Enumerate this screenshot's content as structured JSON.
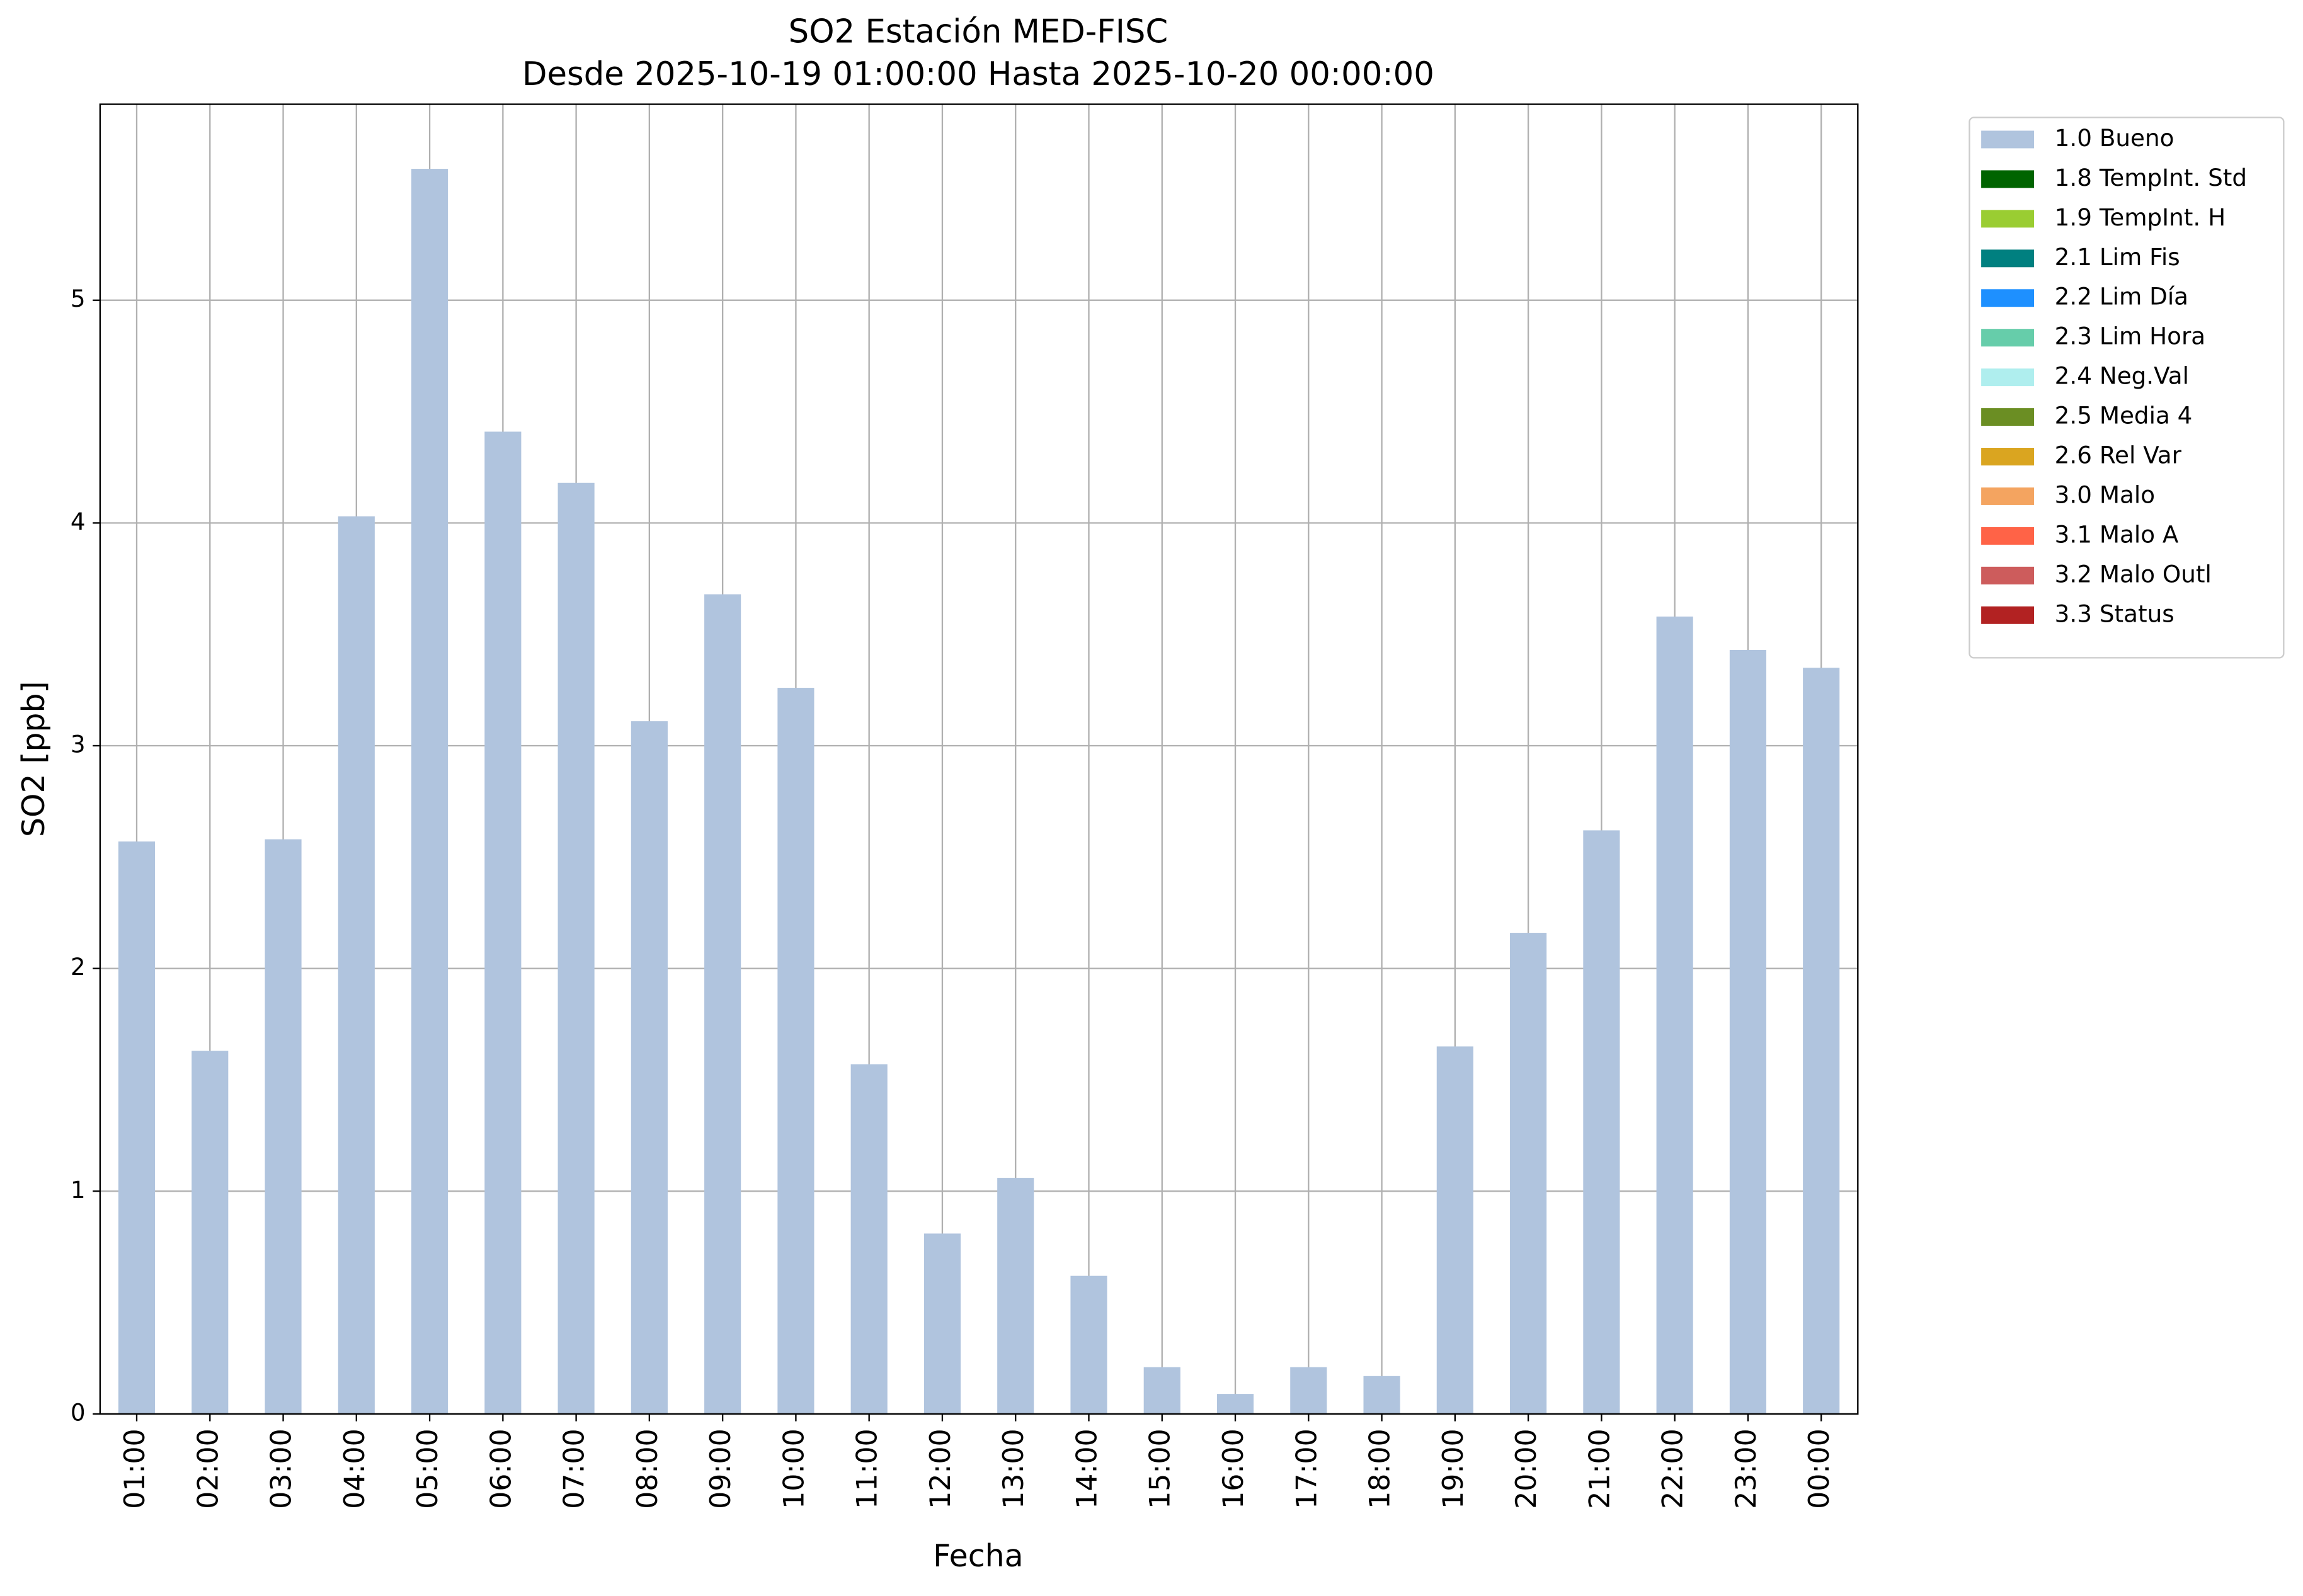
{
  "chart_data": {
    "type": "stacked_bar",
    "title": "SO2 Estación MED-FISC",
    "subtitle": "Desde 2025-10-19 01:00:00 Hasta 2025-10-20 00:00:00",
    "x_label": "Fecha",
    "y_label": "SO2 [ppb]",
    "categories": [
      "01:00",
      "02:00",
      "03:00",
      "04:00",
      "05:00",
      "06:00",
      "07:00",
      "08:00",
      "09:00",
      "10:00",
      "11:00",
      "12:00",
      "13:00",
      "14:00",
      "15:00",
      "16:00",
      "17:00",
      "18:00",
      "19:00",
      "20:00",
      "21:00",
      "22:00",
      "23:00",
      "00:00"
    ],
    "series": [
      {
        "name": "1.0 Bueno",
        "color": "#b0c4de",
        "values": [
          2.57,
          1.63,
          2.58,
          4.03,
          5.59,
          4.41,
          4.18,
          3.11,
          3.68,
          3.26,
          1.57,
          0.81,
          1.06,
          0.62,
          0.21,
          0.09,
          0.21,
          0.17,
          1.65,
          2.16,
          2.62,
          3.58,
          3.43,
          3.35
        ]
      },
      {
        "name": "1.8 TempInt. Std",
        "color": "#006400",
        "values": [
          0,
          0,
          0,
          0,
          0,
          0,
          0,
          0,
          0,
          0,
          0,
          0,
          0,
          0,
          0,
          0,
          0,
          0,
          0,
          0,
          0,
          0,
          0,
          0
        ]
      },
      {
        "name": "1.9 TempInt. H",
        "color": "#9acd32",
        "values": [
          0,
          0,
          0,
          0,
          0,
          0,
          0,
          0,
          0,
          0,
          0,
          0,
          0,
          0,
          0,
          0,
          0,
          0,
          0,
          0,
          0,
          0,
          0,
          0
        ]
      },
      {
        "name": "2.1 Lim Fis",
        "color": "#008080",
        "values": [
          0,
          0,
          0,
          0,
          0,
          0,
          0,
          0,
          0,
          0,
          0,
          0,
          0,
          0,
          0,
          0,
          0,
          0,
          0,
          0,
          0,
          0,
          0,
          0
        ]
      },
      {
        "name": "2.2 Lim Día",
        "color": "#1e90ff",
        "values": [
          0,
          0,
          0,
          0,
          0,
          0,
          0,
          0,
          0,
          0,
          0,
          0,
          0,
          0,
          0,
          0,
          0,
          0,
          0,
          0,
          0,
          0,
          0,
          0
        ]
      },
      {
        "name": "2.3 Lim Hora",
        "color": "#66cdaa",
        "values": [
          0,
          0,
          0,
          0,
          0,
          0,
          0,
          0,
          0,
          0,
          0,
          0,
          0,
          0,
          0,
          0,
          0,
          0,
          0,
          0,
          0,
          0,
          0,
          0
        ]
      },
      {
        "name": "2.4 Neg.Val",
        "color": "#afeeee",
        "values": [
          0,
          0,
          0,
          0,
          0,
          0,
          0,
          0,
          0,
          0,
          0,
          0,
          0,
          0,
          0,
          0,
          0,
          0,
          0,
          0,
          0,
          0,
          0,
          0
        ]
      },
      {
        "name": "2.5 Media 4",
        "color": "#6b8e23",
        "values": [
          0,
          0,
          0,
          0,
          0,
          0,
          0,
          0,
          0,
          0,
          0,
          0,
          0,
          0,
          0,
          0,
          0,
          0,
          0,
          0,
          0,
          0,
          0,
          0
        ]
      },
      {
        "name": "2.6 Rel Var",
        "color": "#daa520",
        "values": [
          0,
          0,
          0,
          0,
          0,
          0,
          0,
          0,
          0,
          0,
          0,
          0,
          0,
          0,
          0,
          0,
          0,
          0,
          0,
          0,
          0,
          0,
          0,
          0
        ]
      },
      {
        "name": "3.0 Malo",
        "color": "#f4a460",
        "values": [
          0,
          0,
          0,
          0,
          0,
          0,
          0,
          0,
          0,
          0,
          0,
          0,
          0,
          0,
          0,
          0,
          0,
          0,
          0,
          0,
          0,
          0,
          0,
          0
        ]
      },
      {
        "name": "3.1 Malo A",
        "color": "#ff6347",
        "values": [
          0,
          0,
          0,
          0,
          0,
          0,
          0,
          0,
          0,
          0,
          0,
          0,
          0,
          0,
          0,
          0,
          0,
          0,
          0,
          0,
          0,
          0,
          0,
          0
        ]
      },
      {
        "name": "3.2 Malo Outl",
        "color": "#cd5c5c",
        "values": [
          0,
          0,
          0,
          0,
          0,
          0,
          0,
          0,
          0,
          0,
          0,
          0,
          0,
          0,
          0,
          0,
          0,
          0,
          0,
          0,
          0,
          0,
          0,
          0
        ]
      },
      {
        "name": "3.3 Status",
        "color": "#b22222",
        "values": [
          0,
          0,
          0,
          0,
          0,
          0,
          0,
          0,
          0,
          0,
          0,
          0,
          0,
          0,
          0,
          0,
          0,
          0,
          0,
          0,
          0,
          0,
          0,
          0
        ]
      }
    ],
    "ylim": [
      0,
      5.88
    ],
    "yticks": [
      0,
      1,
      2,
      3,
      4,
      5
    ],
    "grid": true,
    "legend_position": "outside-right"
  }
}
